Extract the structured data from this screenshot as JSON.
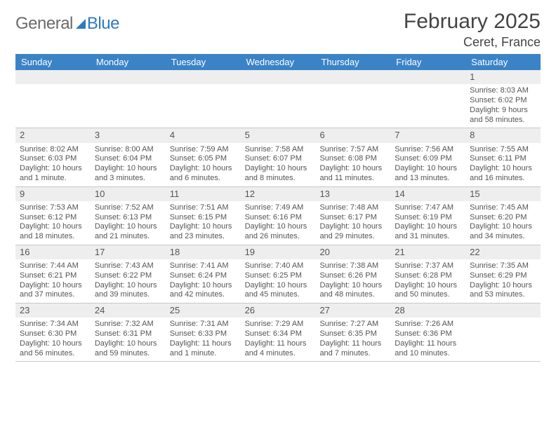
{
  "logo": {
    "text1": "General",
    "text2": "Blue"
  },
  "title": "February 2025",
  "location": "Ceret, France",
  "colors": {
    "header_bar": "#3b83c7",
    "header_text": "#ffffff",
    "daynum_bg": "#eeeeee",
    "rule": "#c8c8c8",
    "body_text": "#555555",
    "logo_gray": "#6a6a6a",
    "logo_blue": "#2f7ac0"
  },
  "dow": [
    "Sunday",
    "Monday",
    "Tuesday",
    "Wednesday",
    "Thursday",
    "Friday",
    "Saturday"
  ],
  "weeks": [
    [
      {
        "n": "",
        "sr": "",
        "ss": "",
        "dl": ""
      },
      {
        "n": "",
        "sr": "",
        "ss": "",
        "dl": ""
      },
      {
        "n": "",
        "sr": "",
        "ss": "",
        "dl": ""
      },
      {
        "n": "",
        "sr": "",
        "ss": "",
        "dl": ""
      },
      {
        "n": "",
        "sr": "",
        "ss": "",
        "dl": ""
      },
      {
        "n": "",
        "sr": "",
        "ss": "",
        "dl": ""
      },
      {
        "n": "1",
        "sr": "Sunrise: 8:03 AM",
        "ss": "Sunset: 6:02 PM",
        "dl": "Daylight: 9 hours and 58 minutes."
      }
    ],
    [
      {
        "n": "2",
        "sr": "Sunrise: 8:02 AM",
        "ss": "Sunset: 6:03 PM",
        "dl": "Daylight: 10 hours and 1 minute."
      },
      {
        "n": "3",
        "sr": "Sunrise: 8:00 AM",
        "ss": "Sunset: 6:04 PM",
        "dl": "Daylight: 10 hours and 3 minutes."
      },
      {
        "n": "4",
        "sr": "Sunrise: 7:59 AM",
        "ss": "Sunset: 6:05 PM",
        "dl": "Daylight: 10 hours and 6 minutes."
      },
      {
        "n": "5",
        "sr": "Sunrise: 7:58 AM",
        "ss": "Sunset: 6:07 PM",
        "dl": "Daylight: 10 hours and 8 minutes."
      },
      {
        "n": "6",
        "sr": "Sunrise: 7:57 AM",
        "ss": "Sunset: 6:08 PM",
        "dl": "Daylight: 10 hours and 11 minutes."
      },
      {
        "n": "7",
        "sr": "Sunrise: 7:56 AM",
        "ss": "Sunset: 6:09 PM",
        "dl": "Daylight: 10 hours and 13 minutes."
      },
      {
        "n": "8",
        "sr": "Sunrise: 7:55 AM",
        "ss": "Sunset: 6:11 PM",
        "dl": "Daylight: 10 hours and 16 minutes."
      }
    ],
    [
      {
        "n": "9",
        "sr": "Sunrise: 7:53 AM",
        "ss": "Sunset: 6:12 PM",
        "dl": "Daylight: 10 hours and 18 minutes."
      },
      {
        "n": "10",
        "sr": "Sunrise: 7:52 AM",
        "ss": "Sunset: 6:13 PM",
        "dl": "Daylight: 10 hours and 21 minutes."
      },
      {
        "n": "11",
        "sr": "Sunrise: 7:51 AM",
        "ss": "Sunset: 6:15 PM",
        "dl": "Daylight: 10 hours and 23 minutes."
      },
      {
        "n": "12",
        "sr": "Sunrise: 7:49 AM",
        "ss": "Sunset: 6:16 PM",
        "dl": "Daylight: 10 hours and 26 minutes."
      },
      {
        "n": "13",
        "sr": "Sunrise: 7:48 AM",
        "ss": "Sunset: 6:17 PM",
        "dl": "Daylight: 10 hours and 29 minutes."
      },
      {
        "n": "14",
        "sr": "Sunrise: 7:47 AM",
        "ss": "Sunset: 6:19 PM",
        "dl": "Daylight: 10 hours and 31 minutes."
      },
      {
        "n": "15",
        "sr": "Sunrise: 7:45 AM",
        "ss": "Sunset: 6:20 PM",
        "dl": "Daylight: 10 hours and 34 minutes."
      }
    ],
    [
      {
        "n": "16",
        "sr": "Sunrise: 7:44 AM",
        "ss": "Sunset: 6:21 PM",
        "dl": "Daylight: 10 hours and 37 minutes."
      },
      {
        "n": "17",
        "sr": "Sunrise: 7:43 AM",
        "ss": "Sunset: 6:22 PM",
        "dl": "Daylight: 10 hours and 39 minutes."
      },
      {
        "n": "18",
        "sr": "Sunrise: 7:41 AM",
        "ss": "Sunset: 6:24 PM",
        "dl": "Daylight: 10 hours and 42 minutes."
      },
      {
        "n": "19",
        "sr": "Sunrise: 7:40 AM",
        "ss": "Sunset: 6:25 PM",
        "dl": "Daylight: 10 hours and 45 minutes."
      },
      {
        "n": "20",
        "sr": "Sunrise: 7:38 AM",
        "ss": "Sunset: 6:26 PM",
        "dl": "Daylight: 10 hours and 48 minutes."
      },
      {
        "n": "21",
        "sr": "Sunrise: 7:37 AM",
        "ss": "Sunset: 6:28 PM",
        "dl": "Daylight: 10 hours and 50 minutes."
      },
      {
        "n": "22",
        "sr": "Sunrise: 7:35 AM",
        "ss": "Sunset: 6:29 PM",
        "dl": "Daylight: 10 hours and 53 minutes."
      }
    ],
    [
      {
        "n": "23",
        "sr": "Sunrise: 7:34 AM",
        "ss": "Sunset: 6:30 PM",
        "dl": "Daylight: 10 hours and 56 minutes."
      },
      {
        "n": "24",
        "sr": "Sunrise: 7:32 AM",
        "ss": "Sunset: 6:31 PM",
        "dl": "Daylight: 10 hours and 59 minutes."
      },
      {
        "n": "25",
        "sr": "Sunrise: 7:31 AM",
        "ss": "Sunset: 6:33 PM",
        "dl": "Daylight: 11 hours and 1 minute."
      },
      {
        "n": "26",
        "sr": "Sunrise: 7:29 AM",
        "ss": "Sunset: 6:34 PM",
        "dl": "Daylight: 11 hours and 4 minutes."
      },
      {
        "n": "27",
        "sr": "Sunrise: 7:27 AM",
        "ss": "Sunset: 6:35 PM",
        "dl": "Daylight: 11 hours and 7 minutes."
      },
      {
        "n": "28",
        "sr": "Sunrise: 7:26 AM",
        "ss": "Sunset: 6:36 PM",
        "dl": "Daylight: 11 hours and 10 minutes."
      },
      {
        "n": "",
        "sr": "",
        "ss": "",
        "dl": ""
      }
    ]
  ]
}
